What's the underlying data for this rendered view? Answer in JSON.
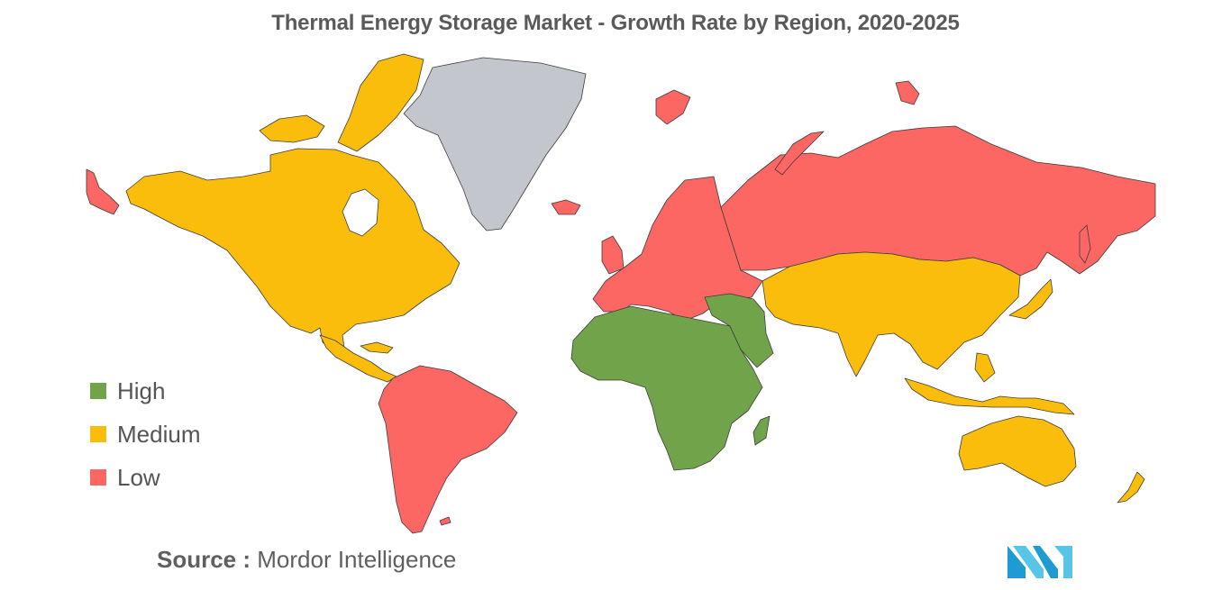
{
  "title": "Thermal Energy Storage Market - Growth Rate by Region, 2020-2025",
  "legend": [
    {
      "label": "High",
      "color": "#71a34b"
    },
    {
      "label": "Medium",
      "color": "#fbbd0b"
    },
    {
      "label": "Low",
      "color": "#fc6663"
    }
  ],
  "no_data_color": "#c3c6cc",
  "regions": {
    "north_america": "Medium",
    "greenland": "no data",
    "south_america": "Low",
    "europe": "Low",
    "russia": "Low",
    "africa": "High",
    "middle_east": "High",
    "asia_pacific": "Medium",
    "australia": "Medium"
  },
  "source": {
    "prefix": "Source :",
    "text": " Mordor Intelligence"
  }
}
